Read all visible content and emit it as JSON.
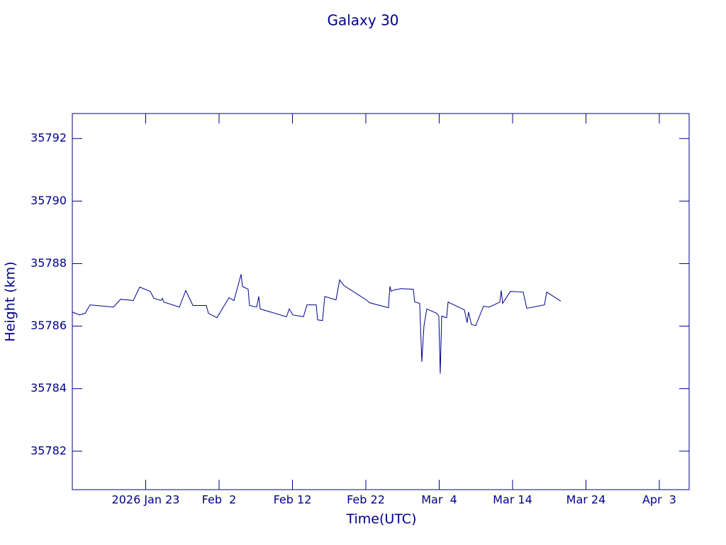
{
  "chart_data": {
    "type": "line",
    "title": "Galaxy 30",
    "x_label": "Time(UTC)",
    "y_label": "Height (km)",
    "color": "#00008b",
    "xlim": [
      13,
      97.06
    ],
    "ylim": [
      35780.77,
      35792.8
    ],
    "xticks": [
      {
        "value": 23,
        "label": "2026 Jan 23"
      },
      {
        "value": 33,
        "label": "Feb  2"
      },
      {
        "value": 43,
        "label": "Feb 12"
      },
      {
        "value": 53,
        "label": "Feb 22"
      },
      {
        "value": 63,
        "label": "Mar  4"
      },
      {
        "value": 73,
        "label": "Mar 14"
      },
      {
        "value": 83,
        "label": "Mar 24"
      },
      {
        "value": 93,
        "label": "Apr  3"
      }
    ],
    "yticks": [
      35782,
      35784,
      35786,
      35788,
      35790,
      35792
    ],
    "x": [
      13,
      13.97,
      14.74,
      15.42,
      18.6,
      19.57,
      21.31,
      22.18,
      23.63,
      24.11,
      25.08,
      25.27,
      25.46,
      27.59,
      28.46,
      29.43,
      31.26,
      31.55,
      32.71,
      34.35,
      35.03,
      36.0,
      36.19,
      36.96,
      37.15,
      38.12,
      38.41,
      38.6,
      42.18,
      42.57,
      43.05,
      44.5,
      44.98,
      46.24,
      46.43,
      47.1,
      47.4,
      48.94,
      49.43,
      50.0,
      53.19,
      53.48,
      56.09,
      56.28,
      56.47,
      56.86,
      57.82,
      59.47,
      59.66,
      60.34,
      60.63,
      60.92,
      61.31,
      62.66,
      62.95,
      63.14,
      63.34,
      64.01,
      64.21,
      66.43,
      66.81,
      67.0,
      67.39,
      67.98,
      69.04,
      69.81,
      71.26,
      71.45,
      71.64,
      72.71,
      74.45,
      74.93,
      77.35,
      77.64,
      79.57
    ],
    "series": [
      {
        "name": "Height",
        "color": "#00008b",
        "values": [
          35786.45,
          35786.36,
          35786.41,
          35786.68,
          35786.61,
          35786.86,
          35786.82,
          35787.25,
          35787.11,
          35786.89,
          35786.82,
          35786.89,
          35786.77,
          35786.61,
          35787.14,
          35786.66,
          35786.66,
          35786.41,
          35786.27,
          35786.91,
          35786.82,
          35787.66,
          35787.27,
          35787.18,
          35786.66,
          35786.61,
          35786.95,
          35786.55,
          35786.3,
          35786.55,
          35786.36,
          35786.3,
          35786.68,
          35786.68,
          35786.2,
          35786.18,
          35786.95,
          35786.84,
          35787.48,
          35787.3,
          35786.82,
          35786.75,
          35786.59,
          35787.27,
          35787.11,
          35787.16,
          35787.2,
          35787.18,
          35786.77,
          35786.73,
          35784.86,
          35786.0,
          35786.55,
          35786.41,
          35786.32,
          35784.48,
          35786.32,
          35786.27,
          35786.77,
          35786.52,
          35786.11,
          35786.45,
          35786.05,
          35786.02,
          35786.64,
          35786.61,
          35786.77,
          35787.14,
          35786.73,
          35787.11,
          35787.09,
          35786.57,
          35786.68,
          35787.09,
          35786.8
        ]
      }
    ]
  }
}
